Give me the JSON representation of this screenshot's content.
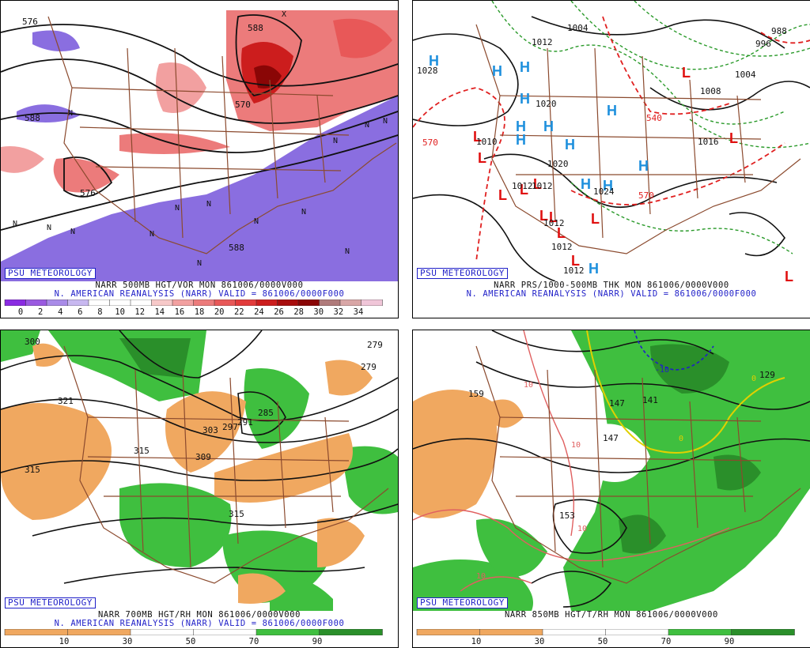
{
  "badge_text": "PSU METEOROLOGY",
  "panels": [
    {
      "caption_line1": "NARR 500MB HGT/VOR MON 861006/0000V000",
      "caption_line2": "N. AMERICAN REANALYSIS (NARR) VALID = 861006/0000F000",
      "colorbar_labels": [
        "0",
        "2",
        "4",
        "6",
        "8",
        "10",
        "12",
        "14",
        "16",
        "18",
        "20",
        "22",
        "24",
        "26",
        "28",
        "30",
        "32",
        "34"
      ],
      "contour_labels": [
        "576",
        "588",
        "588",
        "576",
        "570",
        "588",
        "5"
      ],
      "symbols": [
        "N",
        "N",
        "N",
        "N",
        "N",
        "N",
        "N",
        "N",
        "N",
        "N",
        "N",
        "N",
        "N",
        "N",
        "X"
      ]
    },
    {
      "caption_line1": "NARR PRS/1000-500MB THK MON 861006/0000V000",
      "caption_line2": "N. AMERICAN REANALYSIS (NARR) VALID = 861006/0000F000",
      "pressure_labels": [
        "1028",
        "1012",
        "1004",
        "996",
        "988",
        "1004",
        "1008",
        "1020",
        "1012",
        "1012",
        "1016",
        "1024",
        "1020",
        "1012",
        "1012",
        "1012",
        "1010"
      ],
      "thickness_labels": [
        "570",
        "540",
        "570"
      ],
      "highs": [
        "H",
        "H",
        "H",
        "H",
        "H",
        "H",
        "H",
        "H",
        "H",
        "H",
        "H",
        "H",
        "H"
      ],
      "lows": [
        "L",
        "L",
        "L",
        "L",
        "L",
        "L",
        "L",
        "L",
        "L",
        "L",
        "L",
        "L",
        "L"
      ]
    },
    {
      "caption_line1": "NARR 700MB HGT/RH MON 861006/0000V000",
      "caption_line2": "N. AMERICAN REANALYSIS (NARR) VALID = 861006/0000F000",
      "colorbar_labels": [
        "10",
        "30",
        "50",
        "70",
        "90"
      ],
      "contour_labels": [
        "300",
        "279",
        "279",
        "321",
        "315",
        "315",
        "303",
        "297",
        "291",
        "285",
        "309",
        "315"
      ]
    },
    {
      "caption_line1": "NARR 850MB HGT/T/RH MON 861006/0000V000",
      "colorbar_labels": [
        "10",
        "30",
        "50",
        "70",
        "90"
      ],
      "contour_labels": [
        "159",
        "147",
        "141",
        "147",
        "153",
        "129"
      ],
      "temperature_labels": [
        "-10",
        "10",
        "10",
        "0",
        "10",
        "10",
        "0"
      ]
    }
  ],
  "colors": {
    "vort_scale": [
      "#8a2be2",
      "#9a5ae0",
      "#a98be8",
      "#c8b8f0",
      "#ffffff",
      "#ffffff",
      "#ffffff",
      "#f7c9c9",
      "#f2a0a0",
      "#ec7b7b",
      "#e85858",
      "#e23b3b",
      "#cc1d1d",
      "#a80d0d",
      "#8a0606",
      "#b07b7b",
      "#d9a7a7",
      "#f0c6d8"
    ],
    "rh_dry": "#f0a860",
    "rh_moist": "#3fbf3f",
    "rh_very_moist": "#2a8f2a",
    "borders": "#8b4a2e",
    "badge_blue": "#1f1fc8",
    "high_blue": "#1e90dd",
    "low_red": "#e01010"
  }
}
